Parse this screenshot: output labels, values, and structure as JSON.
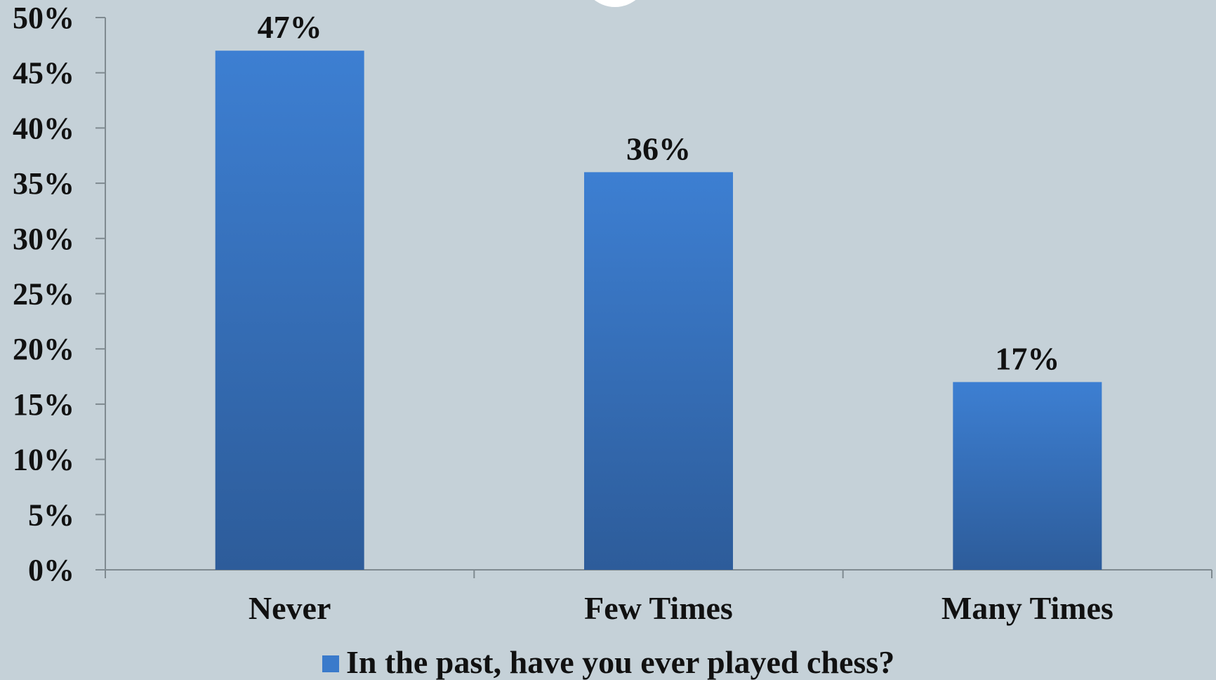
{
  "chart_data": {
    "type": "bar",
    "categories": [
      "Never",
      "Few Times",
      "Many Times"
    ],
    "series": [
      {
        "name": "In the past, have you ever played chess?",
        "values": [
          47,
          36,
          17
        ],
        "color": "#3a7acb"
      }
    ],
    "data_labels": [
      "47%",
      "36%",
      "17%"
    ],
    "yticks": [
      0,
      5,
      10,
      15,
      20,
      25,
      30,
      35,
      40,
      45,
      50
    ],
    "ytick_labels": [
      "0%",
      "5%",
      "10%",
      "15%",
      "20%",
      "25%",
      "30%",
      "35%",
      "40%",
      "45%",
      "50%"
    ],
    "ylim": [
      0,
      50
    ],
    "grid": false,
    "legend_position": "bottom",
    "background_color": "#c5d1d8",
    "axis_color": "#7f8a90"
  }
}
